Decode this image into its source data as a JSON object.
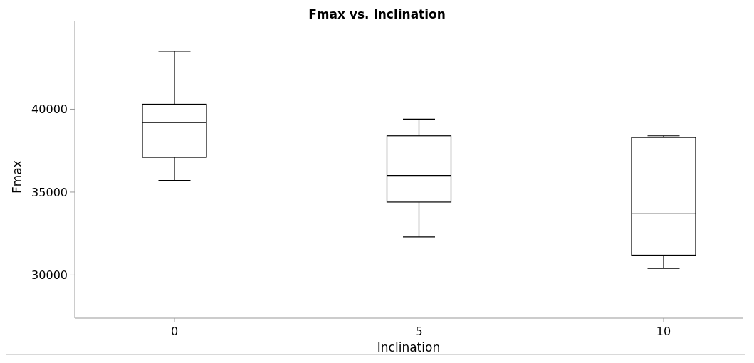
{
  "chart_data": {
    "type": "box",
    "title": "Fmax vs. Inclination",
    "xlabel": "Inclination",
    "ylabel": "Fmax",
    "categories": [
      "0",
      "5",
      "10"
    ],
    "boxes": [
      {
        "low": 35700,
        "q1": 37100,
        "median": 39200,
        "q3": 40300,
        "high": 43500
      },
      {
        "low": 32300,
        "q1": 34400,
        "median": 36000,
        "q3": 38400,
        "high": 39400
      },
      {
        "low": 30400,
        "q1": 31200,
        "median": 33700,
        "q3": 38300,
        "high": 38400
      }
    ],
    "color": "#000000",
    "ylim": [
      27400,
      45300
    ],
    "yticks": [
      30000,
      35000,
      40000
    ],
    "grid": false
  }
}
